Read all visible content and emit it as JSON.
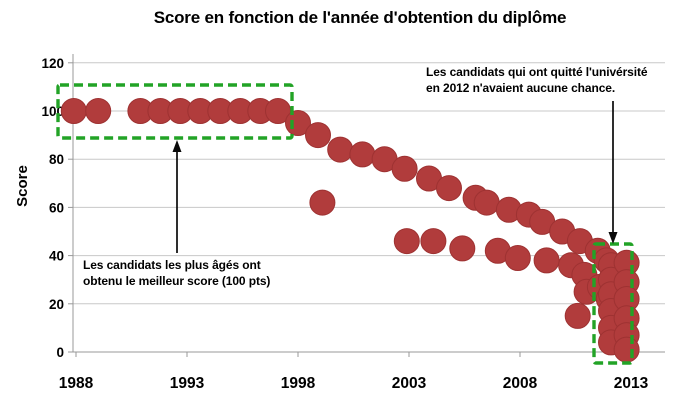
{
  "chart_data": {
    "type": "scatter",
    "title": "Score en fonction de l'année d'obtention du diplôme",
    "xlabel": "",
    "ylabel": "Score",
    "xlim": [
      1988,
      2013
    ],
    "ylim": [
      0,
      120
    ],
    "x_ticks": [
      1988,
      1993,
      1998,
      2003,
      2008,
      2013
    ],
    "y_ticks": [
      0,
      20,
      40,
      60,
      80,
      100,
      120
    ],
    "grid": "horizontal",
    "legend": "none",
    "marker_color": "#b13c3c",
    "marker_edge_color": "#9e3232",
    "points": [
      [
        1987.9,
        100
      ],
      [
        1989.0,
        100
      ],
      [
        1990.9,
        100
      ],
      [
        1991.8,
        100
      ],
      [
        1992.7,
        100
      ],
      [
        1993.6,
        100
      ],
      [
        1994.5,
        100
      ],
      [
        1995.4,
        100
      ],
      [
        1996.3,
        100
      ],
      [
        1997.1,
        100
      ],
      [
        1998.0,
        95
      ],
      [
        1998.9,
        90
      ],
      [
        1999.1,
        62
      ],
      [
        1999.9,
        84
      ],
      [
        2000.9,
        82
      ],
      [
        2001.9,
        80
      ],
      [
        2002.8,
        76
      ],
      [
        2002.9,
        46
      ],
      [
        2003.9,
        72
      ],
      [
        2004.1,
        46
      ],
      [
        2004.8,
        68
      ],
      [
        2005.4,
        43
      ],
      [
        2006.0,
        64
      ],
      [
        2006.5,
        62
      ],
      [
        2007.0,
        42
      ],
      [
        2007.5,
        59
      ],
      [
        2007.9,
        39
      ],
      [
        2008.4,
        57
      ],
      [
        2009.0,
        54
      ],
      [
        2009.2,
        38
      ],
      [
        2009.9,
        50
      ],
      [
        2010.3,
        36
      ],
      [
        2010.6,
        15
      ],
      [
        2010.7,
        46
      ],
      [
        2010.9,
        32
      ],
      [
        2011.0,
        25
      ],
      [
        2011.5,
        42
      ],
      [
        2011.6,
        27
      ],
      [
        2011.9,
        38
      ],
      [
        2012.0,
        22
      ],
      [
        2012.1,
        36
      ],
      [
        2012.1,
        30
      ],
      [
        2012.1,
        24
      ],
      [
        2012.1,
        17
      ],
      [
        2012.1,
        10
      ],
      [
        2012.1,
        4
      ],
      [
        2012.8,
        37
      ],
      [
        2012.8,
        29
      ],
      [
        2012.8,
        22
      ],
      [
        2012.8,
        14
      ],
      [
        2012.8,
        7
      ],
      [
        2012.8,
        1
      ]
    ]
  },
  "annotations": {
    "left": {
      "lines": [
        "Les candidats les plus âgés ont",
        "obtenu le meilleur score (100 pts)"
      ],
      "highlight": "score 100 : 1988-1997"
    },
    "right": {
      "lines": [
        "Les candidats qui ont quitté l'univérsité",
        "en 2012 n'avaient aucune chance."
      ],
      "highlight": "2012 : scores 0-37"
    }
  },
  "colors": {
    "marker": "#b13c3c",
    "marker_edge": "#9e3232",
    "highlight_green": "#22a326",
    "gridline": "#c8c8c8",
    "axis": "#999999",
    "arrow": "#0a0a0a",
    "text": "#000000",
    "background": "#ffffff"
  }
}
